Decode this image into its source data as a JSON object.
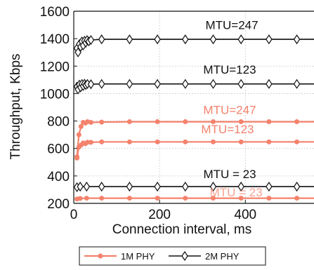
{
  "chart_data": {
    "type": "line",
    "xlabel": "Connection interval, ms",
    "ylabel": "Throughput, Kbps",
    "xlim": [
      0,
      560
    ],
    "ylim": [
      200,
      1600
    ],
    "xticks": [
      0,
      200,
      400
    ],
    "yticks": [
      200,
      400,
      600,
      800,
      1000,
      1200,
      1400,
      1600
    ],
    "grid": true,
    "legend_position": "bottom",
    "legend": [
      {
        "label": "1M PHY",
        "color": "#f4826c",
        "marker": "circle"
      },
      {
        "label": "2M PHY",
        "color": "#111111",
        "marker": "diamond"
      }
    ],
    "series": [
      {
        "phy": "1M PHY",
        "mtu": "247",
        "color": "#f4826c",
        "marker": "circle",
        "x": [
          7.5,
          12,
          17,
          22,
          27,
          32,
          40,
          65,
          130,
          195,
          260,
          325,
          390,
          455,
          520,
          560
        ],
        "y": [
          540,
          700,
          760,
          790,
          785,
          795,
          790,
          792,
          795,
          795,
          795,
          795,
          795,
          795,
          795,
          795
        ]
      },
      {
        "phy": "1M PHY",
        "mtu": "123",
        "color": "#f4826c",
        "marker": "circle",
        "x": [
          7.5,
          12,
          17,
          22,
          27,
          32,
          40,
          65,
          130,
          195,
          260,
          325,
          390,
          455,
          520,
          560
        ],
        "y": [
          530,
          610,
          625,
          640,
          635,
          645,
          645,
          648,
          648,
          648,
          648,
          648,
          648,
          648,
          648,
          648
        ]
      },
      {
        "phy": "1M PHY",
        "mtu": "23",
        "color": "#f4826c",
        "marker": "circle",
        "x": [
          7.5,
          15,
          30,
          65,
          130,
          195,
          260,
          325,
          390,
          455,
          520,
          560
        ],
        "y": [
          232,
          236,
          238,
          238,
          238,
          238,
          238,
          238,
          238,
          238,
          238,
          238
        ]
      },
      {
        "phy": "2M PHY",
        "mtu": "247",
        "color": "#111111",
        "marker": "diamond",
        "x": [
          7.5,
          10,
          13,
          16,
          19,
          22,
          25,
          28,
          31,
          35,
          40,
          65,
          130,
          195,
          260,
          325,
          390,
          455,
          520,
          560
        ],
        "y": [
          1330,
          1300,
          1360,
          1340,
          1380,
          1350,
          1385,
          1370,
          1390,
          1380,
          1390,
          1395,
          1395,
          1395,
          1395,
          1395,
          1395,
          1395,
          1395,
          1395
        ]
      },
      {
        "phy": "2M PHY",
        "mtu": "123",
        "color": "#111111",
        "marker": "diamond",
        "x": [
          7.5,
          10,
          13,
          16,
          19,
          22,
          25,
          28,
          32,
          40,
          65,
          130,
          195,
          260,
          325,
          390,
          455,
          520,
          560
        ],
        "y": [
          1050,
          1030,
          1065,
          1045,
          1070,
          1055,
          1072,
          1062,
          1070,
          1068,
          1070,
          1070,
          1070,
          1070,
          1070,
          1070,
          1070,
          1070,
          1070
        ]
      },
      {
        "phy": "2M PHY",
        "mtu": "23",
        "color": "#111111",
        "marker": "diamond",
        "x": [
          7.5,
          15,
          30,
          65,
          130,
          195,
          260,
          325,
          390,
          455,
          520,
          560
        ],
        "y": [
          318,
          322,
          322,
          322,
          322,
          322,
          322,
          322,
          322,
          322,
          322,
          322
        ]
      }
    ],
    "annotations": [
      {
        "text": "MTU=247",
        "color": "#111111",
        "x": 430,
        "y": 1470
      },
      {
        "text": "MTU=123",
        "color": "#111111",
        "x": 425,
        "y": 1145
      },
      {
        "text": "MTU=247",
        "color": "#f4826c",
        "x": 425,
        "y": 852
      },
      {
        "text": "MTU=123",
        "color": "#f4826c",
        "x": 420,
        "y": 710
      },
      {
        "text": "MTU = 23",
        "color": "#111111",
        "x": 425,
        "y": 385
      },
      {
        "text": "MTU = 23",
        "color": "#f4826c",
        "x": 440,
        "y": 252,
        "faint": true
      }
    ]
  }
}
